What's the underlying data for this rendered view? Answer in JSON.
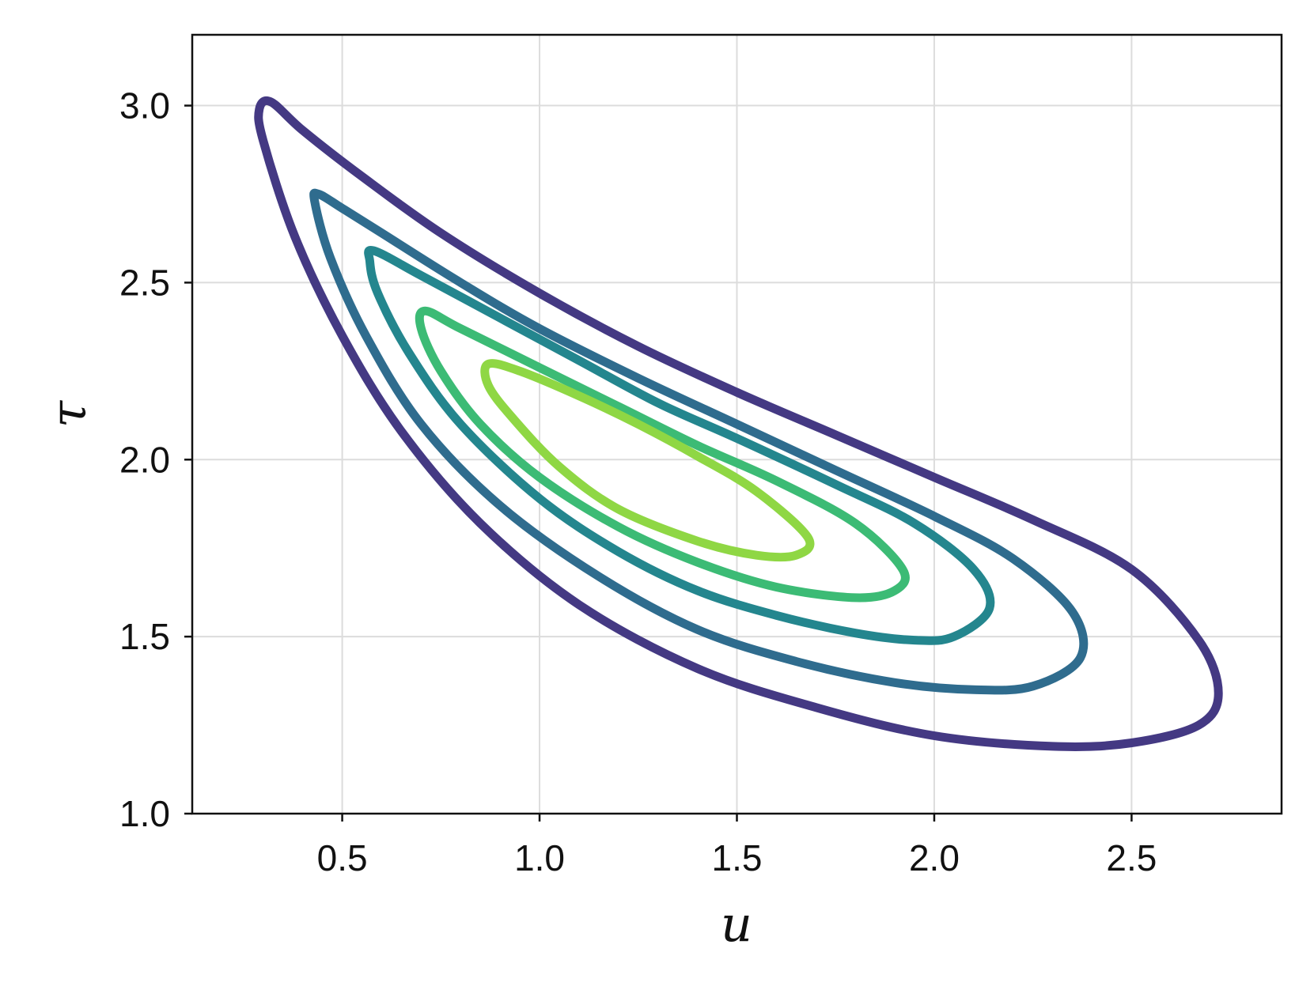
{
  "chart_data": {
    "type": "contour",
    "xlabel": "u",
    "ylabel": "τ",
    "xlim": [
      0.12,
      2.88
    ],
    "ylim": [
      1.0,
      3.2
    ],
    "x_ticks": [
      0.5,
      1.0,
      1.5,
      2.0,
      2.5
    ],
    "x_tick_labels": [
      "0.5",
      "1.0",
      "1.5",
      "2.0",
      "2.5"
    ],
    "y_ticks": [
      1.0,
      1.5,
      2.0,
      2.5,
      3.0
    ],
    "y_tick_labels": [
      "1.0",
      "1.5",
      "2.0",
      "2.5",
      "3.0"
    ],
    "grid": true,
    "colormap": "viridis",
    "contours": [
      {
        "color": "#443983",
        "points": [
          [
            0.32,
            3.01
          ],
          [
            0.4,
            2.93
          ],
          [
            0.55,
            2.8
          ],
          [
            0.75,
            2.64
          ],
          [
            1.0,
            2.47
          ],
          [
            1.25,
            2.32
          ],
          [
            1.5,
            2.19
          ],
          [
            1.75,
            2.07
          ],
          [
            2.0,
            1.95
          ],
          [
            2.25,
            1.83
          ],
          [
            2.5,
            1.69
          ],
          [
            2.67,
            1.49
          ],
          [
            2.72,
            1.34
          ],
          [
            2.67,
            1.25
          ],
          [
            2.5,
            1.2
          ],
          [
            2.3,
            1.19
          ],
          [
            2.0,
            1.22
          ],
          [
            1.7,
            1.3
          ],
          [
            1.4,
            1.41
          ],
          [
            1.1,
            1.59
          ],
          [
            0.85,
            1.82
          ],
          [
            0.65,
            2.08
          ],
          [
            0.5,
            2.35
          ],
          [
            0.38,
            2.63
          ],
          [
            0.3,
            2.9
          ],
          [
            0.29,
            2.99
          ]
        ]
      },
      {
        "color": "#2f6c8e",
        "points": [
          [
            0.44,
            2.75
          ],
          [
            0.5,
            2.71
          ],
          [
            0.6,
            2.64
          ],
          [
            0.8,
            2.5
          ],
          [
            1.0,
            2.37
          ],
          [
            1.25,
            2.23
          ],
          [
            1.5,
            2.1
          ],
          [
            1.75,
            1.97
          ],
          [
            2.0,
            1.84
          ],
          [
            2.2,
            1.72
          ],
          [
            2.35,
            1.57
          ],
          [
            2.37,
            1.44
          ],
          [
            2.25,
            1.36
          ],
          [
            2.1,
            1.35
          ],
          [
            1.9,
            1.37
          ],
          [
            1.65,
            1.43
          ],
          [
            1.4,
            1.52
          ],
          [
            1.15,
            1.67
          ],
          [
            0.9,
            1.87
          ],
          [
            0.7,
            2.1
          ],
          [
            0.56,
            2.35
          ],
          [
            0.47,
            2.57
          ],
          [
            0.43,
            2.73
          ]
        ]
      },
      {
        "color": "#24868e",
        "points": [
          [
            0.58,
            2.59
          ],
          [
            0.7,
            2.52
          ],
          [
            0.9,
            2.4
          ],
          [
            1.1,
            2.28
          ],
          [
            1.3,
            2.16
          ],
          [
            1.5,
            2.06
          ],
          [
            1.75,
            1.93
          ],
          [
            1.95,
            1.82
          ],
          [
            2.1,
            1.69
          ],
          [
            2.14,
            1.58
          ],
          [
            2.05,
            1.5
          ],
          [
            1.95,
            1.49
          ],
          [
            1.8,
            1.51
          ],
          [
            1.6,
            1.56
          ],
          [
            1.4,
            1.63
          ],
          [
            1.2,
            1.74
          ],
          [
            1.0,
            1.89
          ],
          [
            0.8,
            2.1
          ],
          [
            0.67,
            2.3
          ],
          [
            0.59,
            2.47
          ],
          [
            0.57,
            2.56
          ]
        ]
      },
      {
        "color": "#3cbb75",
        "points": [
          [
            0.71,
            2.42
          ],
          [
            0.8,
            2.37
          ],
          [
            1.0,
            2.26
          ],
          [
            1.2,
            2.15
          ],
          [
            1.4,
            2.04
          ],
          [
            1.6,
            1.94
          ],
          [
            1.8,
            1.82
          ],
          [
            1.92,
            1.69
          ],
          [
            1.9,
            1.63
          ],
          [
            1.8,
            1.61
          ],
          [
            1.6,
            1.64
          ],
          [
            1.4,
            1.71
          ],
          [
            1.2,
            1.81
          ],
          [
            1.0,
            1.95
          ],
          [
            0.85,
            2.1
          ],
          [
            0.75,
            2.25
          ],
          [
            0.7,
            2.37
          ]
        ]
      },
      {
        "color": "#8fd744",
        "points": [
          [
            0.87,
            2.27
          ],
          [
            0.95,
            2.25
          ],
          [
            1.1,
            2.18
          ],
          [
            1.25,
            2.1
          ],
          [
            1.4,
            2.01
          ],
          [
            1.55,
            1.91
          ],
          [
            1.68,
            1.78
          ],
          [
            1.65,
            1.73
          ],
          [
            1.55,
            1.73
          ],
          [
            1.4,
            1.77
          ],
          [
            1.2,
            1.86
          ],
          [
            1.05,
            1.98
          ],
          [
            0.93,
            2.12
          ],
          [
            0.87,
            2.21
          ]
        ]
      }
    ]
  }
}
